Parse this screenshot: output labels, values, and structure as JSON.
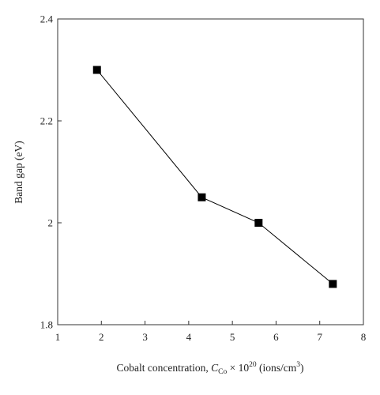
{
  "chart_data": {
    "type": "line",
    "title": "",
    "xlabel": {
      "prefix": "Cobalt concentration, ",
      "symbol": "C",
      "subscript": "Co",
      "times": " × 10",
      "exponent": "20",
      "unit_open": " (ions/cm",
      "unit_exponent": "3",
      "unit_close": ")"
    },
    "ylabel": "Band gap (eV)",
    "xlim": [
      1,
      8
    ],
    "ylim": [
      1.8,
      2.4
    ],
    "x_ticks": [
      1,
      2,
      3,
      4,
      5,
      6,
      7,
      8
    ],
    "x_tick_labels": [
      "1",
      "2",
      "3",
      "4",
      "5",
      "6",
      "7",
      "8"
    ],
    "y_ticks": [
      1.8,
      2.0,
      2.2,
      2.4
    ],
    "y_tick_labels": [
      "1.8",
      "2",
      "2.2",
      "2.4"
    ],
    "grid": false,
    "marker": "square",
    "color": "#000000",
    "series": [
      {
        "x": [
          1.9,
          4.3,
          5.6,
          7.3
        ],
        "y": [
          2.3,
          2.05,
          2.0,
          1.88
        ]
      }
    ]
  }
}
